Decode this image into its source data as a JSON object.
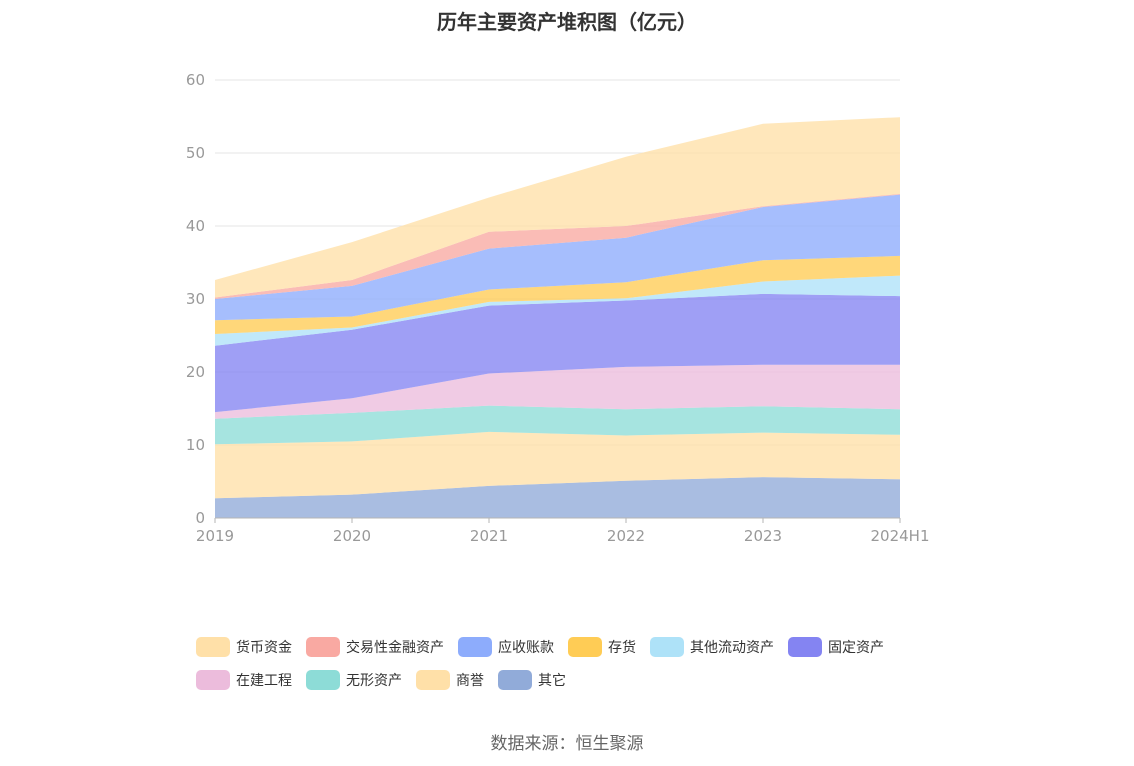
{
  "chart_data": {
    "type": "area",
    "stacked": true,
    "title": "历年主要资产堆积图（亿元）",
    "categories": [
      "2019",
      "2020",
      "2021",
      "2022",
      "2023",
      "2024H1"
    ],
    "y_ticks": [
      "0",
      "10",
      "20",
      "30",
      "40",
      "50",
      "60"
    ],
    "ylim": [
      0,
      60
    ],
    "grid": true,
    "legend_position": "bottom",
    "series": [
      {
        "name": "其它",
        "color": "#91abd9",
        "values": [
          2.7,
          3.2,
          4.4,
          5.1,
          5.6,
          5.3
        ]
      },
      {
        "name": "商誉",
        "color": "#ffe0a8",
        "values": [
          7.4,
          7.3,
          7.4,
          6.2,
          6.1,
          6.1
        ]
      },
      {
        "name": "无形资产",
        "color": "#8ddcd7",
        "values": [
          3.5,
          3.9,
          3.6,
          3.6,
          3.6,
          3.5
        ]
      },
      {
        "name": "在建工程",
        "color": "#ecbcdc",
        "values": [
          0.9,
          2.0,
          4.4,
          5.8,
          5.7,
          6.1
        ]
      },
      {
        "name": "固定资产",
        "color": "#8484f2",
        "values": [
          9.1,
          9.4,
          9.3,
          9.1,
          9.7,
          9.4
        ]
      },
      {
        "name": "其他流动资产",
        "color": "#aee2f8",
        "values": [
          1.6,
          0.3,
          0.5,
          0.3,
          1.7,
          2.8
        ]
      },
      {
        "name": "存货",
        "color": "#ffcc55",
        "values": [
          1.9,
          1.5,
          1.7,
          2.2,
          2.9,
          2.7
        ]
      },
      {
        "name": "应收账款",
        "color": "#8dacfc",
        "values": [
          2.9,
          4.2,
          5.6,
          6.1,
          7.3,
          8.4
        ]
      },
      {
        "name": "交易性金融资产",
        "color": "#f9a9a2",
        "values": [
          0.2,
          0.8,
          2.3,
          1.6,
          0.1,
          0.1
        ]
      },
      {
        "name": "货币资金",
        "color": "#ffe0a8",
        "values": [
          2.4,
          5.2,
          4.7,
          9.5,
          11.3,
          10.5
        ]
      }
    ]
  },
  "legend": [
    [
      {
        "label": "货币资金",
        "color": "#ffe0a8"
      },
      {
        "label": "交易性金融资产",
        "color": "#f9a9a2"
      },
      {
        "label": "应收账款",
        "color": "#8dacfc"
      },
      {
        "label": "存货",
        "color": "#ffcc55"
      },
      {
        "label": "其他流动资产",
        "color": "#aee2f8"
      },
      {
        "label": "固定资产",
        "color": "#8484f2"
      }
    ],
    [
      {
        "label": "在建工程",
        "color": "#ecbcdc"
      },
      {
        "label": "无形资产",
        "color": "#8ddcd7"
      },
      {
        "label": "商誉",
        "color": "#ffe0a8"
      },
      {
        "label": "其它",
        "color": "#91abd9"
      }
    ]
  ],
  "source": "数据来源：恒生聚源"
}
